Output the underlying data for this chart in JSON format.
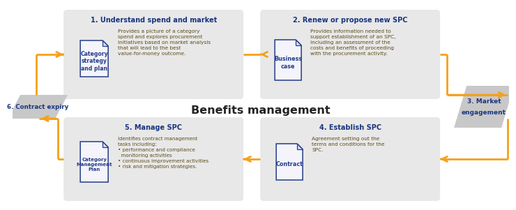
{
  "bg_color": "#ffffff",
  "box_color": "#e8e8e8",
  "para_color": "#c8c8c8",
  "doc_fill": "#f4f4fa",
  "doc_fold_fill": "#d8dcee",
  "doc_border": "#253D8A",
  "orange": "#F5A01A",
  "title_color": "#1A3580",
  "desc_color": "#5C4B1A",
  "center_title": "Benefits management",
  "step1_title": "1. Understand spend and market",
  "step1_doc": "Category\nstrategy\nand plan",
  "step1_desc": "Provides a picture of a category\nspend and explores procurement\ninitiatives based on market analysis\nthat will lead to the best\nvalue-for-money outcome.",
  "step2_title": "2. Renew or propose new SPC",
  "step2_doc": "Business\ncase",
  "step2_desc": "Provides information needed to\nsupport establishment of an SPC,\nincluding an assessment of the\ncosts and benefits of proceeding\nwith the procurement activity.",
  "step3_line1": "3. Market",
  "step3_line2": "engagement",
  "step4_title": "4. Establish SPC",
  "step4_doc": "Contract",
  "step4_desc": "Agreement setting out the\nterms and conditions for the\nSPC.",
  "step5_title": "5. Manage SPC",
  "step5_doc": "Category\nManagement\nPlan",
  "step5_desc": "Identifies contract management\ntasks including:\n• performance and compliance\n  monitoring activities\n• continuous improvement activities\n• risk and mitigation strategies.",
  "step6_title": "6. Contract expiry"
}
